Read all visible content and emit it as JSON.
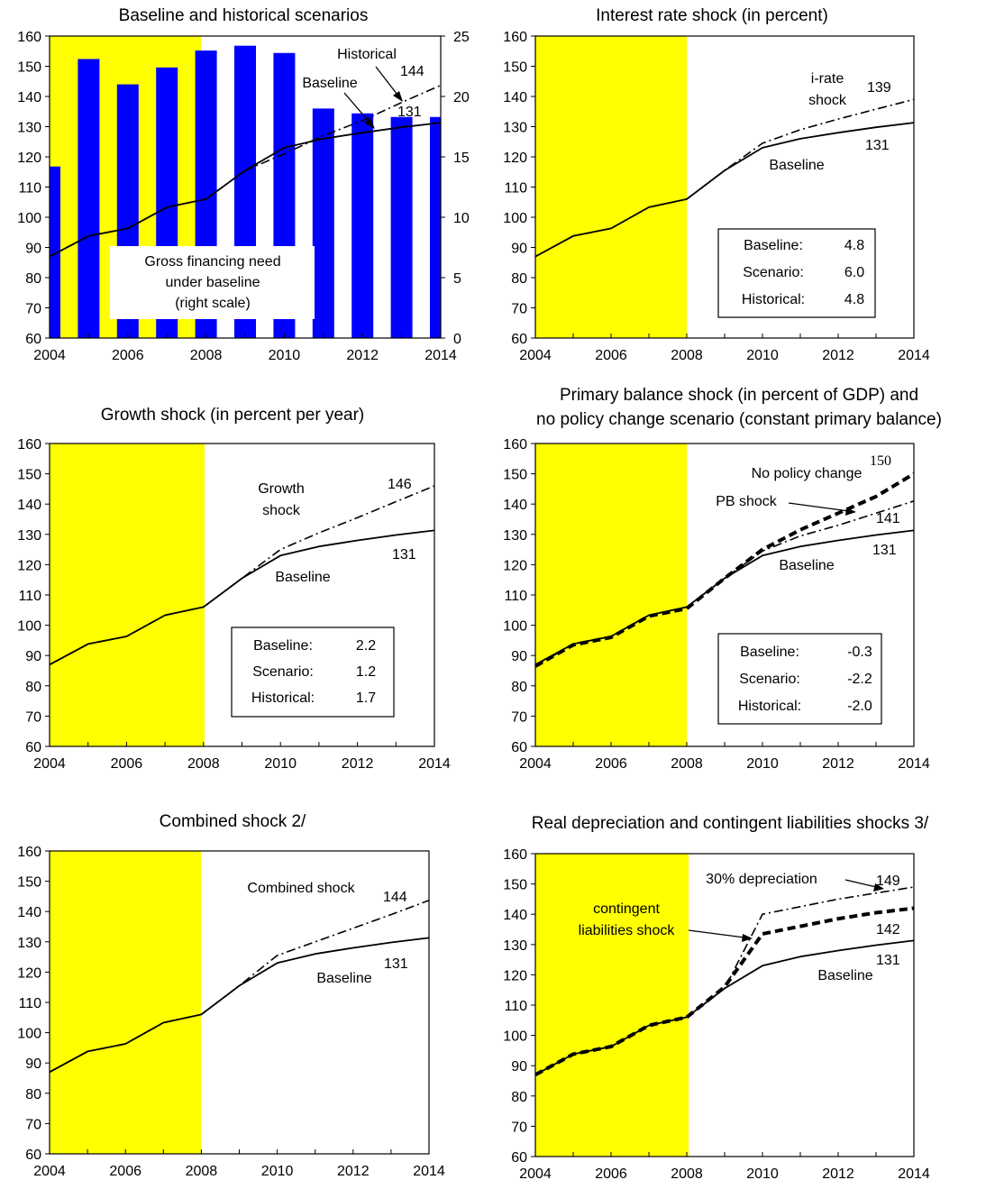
{
  "colors": {
    "shade": "#ffff00",
    "bars": "#0000ff",
    "line": "#000000"
  },
  "chart_data": [
    {
      "type": "line",
      "title": "Baseline and historical scenarios",
      "x": [
        2004,
        2005,
        2006,
        2007,
        2008,
        2009,
        2010,
        2011,
        2012,
        2013,
        2014
      ],
      "ylim": [
        60,
        160
      ],
      "y_ticks": [
        60,
        70,
        80,
        90,
        100,
        110,
        120,
        130,
        140,
        150,
        160
      ],
      "y2lim": [
        0,
        25
      ],
      "y2_ticks": [
        0,
        5,
        10,
        15,
        20,
        25
      ],
      "x_ticks": [
        2004,
        2006,
        2008,
        2010,
        2012,
        2014
      ],
      "shade_to": 2008,
      "bars": {
        "values": [
          14.2,
          23.1,
          21.0,
          22.4,
          23.8,
          24.2,
          23.6,
          19.0,
          18.6,
          18.3,
          18.3
        ],
        "label": [
          "Gross financing need",
          "under baseline",
          "(right scale)"
        ]
      },
      "series": [
        {
          "name": "Baseline",
          "style": "solid",
          "values": [
            87,
            93.8,
            96.3,
            103.3,
            106,
            115.5,
            123,
            126,
            128,
            129.8,
            131.3
          ]
        },
        {
          "name": "Historical",
          "style": "dashdot",
          "values": [
            87,
            93.8,
            96.3,
            103.3,
            106,
            115.5,
            121,
            127,
            132,
            138,
            143.7
          ]
        }
      ],
      "annotations": [
        "144",
        "131"
      ]
    },
    {
      "type": "line",
      "title": "Interest rate shock (in percent)",
      "x": [
        2004,
        2005,
        2006,
        2007,
        2008,
        2009,
        2010,
        2011,
        2012,
        2013,
        2014
      ],
      "ylim": [
        60,
        160
      ],
      "y_ticks": [
        60,
        70,
        80,
        90,
        100,
        110,
        120,
        130,
        140,
        150,
        160
      ],
      "x_ticks": [
        2004,
        2006,
        2008,
        2010,
        2012,
        2014
      ],
      "shade_to": 2008,
      "series": [
        {
          "name": "Baseline",
          "style": "solid",
          "values": [
            87,
            93.8,
            96.3,
            103.3,
            106,
            115.5,
            123,
            126,
            128,
            129.8,
            131.3
          ]
        },
        {
          "name": "i-rate shock",
          "style": "dashdot",
          "values": [
            87,
            93.8,
            96.3,
            103.3,
            106,
            115.5,
            124.5,
            129,
            132.5,
            135.8,
            139
          ]
        }
      ],
      "series_labels": [
        "i-rate",
        "shock"
      ],
      "annotations": [
        "139",
        "131"
      ],
      "legend_box": [
        [
          "Baseline:",
          "4.8"
        ],
        [
          "Scenario:",
          "6.0"
        ],
        [
          "Historical:",
          "4.8"
        ]
      ]
    },
    {
      "type": "line",
      "title": "Growth shock (in percent per year)",
      "x": [
        2004,
        2005,
        2006,
        2007,
        2008,
        2009,
        2010,
        2011,
        2012,
        2013,
        2014
      ],
      "ylim": [
        60,
        160
      ],
      "y_ticks": [
        60,
        70,
        80,
        90,
        100,
        110,
        120,
        130,
        140,
        150,
        160
      ],
      "x_ticks": [
        2004,
        2006,
        2008,
        2010,
        2012,
        2014
      ],
      "shade_to": 2008,
      "series": [
        {
          "name": "Baseline",
          "style": "solid",
          "values": [
            87,
            93.8,
            96.3,
            103.3,
            106,
            115.5,
            123,
            126,
            128,
            129.8,
            131.3
          ]
        },
        {
          "name": "Growth shock",
          "style": "dashdot",
          "values": [
            87,
            93.8,
            96.3,
            103.3,
            106,
            115.5,
            125,
            130.5,
            135.5,
            140.8,
            146
          ]
        }
      ],
      "series_labels": [
        "Growth",
        "shock"
      ],
      "annotations": [
        "146",
        "131"
      ],
      "legend_box": [
        [
          "Baseline:",
          "2.2"
        ],
        [
          "Scenario:",
          "1.2"
        ],
        [
          "Historical:",
          "1.7"
        ]
      ]
    },
    {
      "type": "line",
      "title": [
        "Primary balance shock (in percent of GDP) and",
        "no policy change scenario (constant primary balance)"
      ],
      "x": [
        2004,
        2005,
        2006,
        2007,
        2008,
        2009,
        2010,
        2011,
        2012,
        2013,
        2014
      ],
      "ylim": [
        60,
        160
      ],
      "y_ticks": [
        60,
        70,
        80,
        90,
        100,
        110,
        120,
        130,
        140,
        150,
        160
      ],
      "x_ticks": [
        2004,
        2006,
        2008,
        2010,
        2012,
        2014
      ],
      "shade_to": 2008,
      "series": [
        {
          "name": "Baseline",
          "style": "solid",
          "values": [
            87,
            93.8,
            96.3,
            103.3,
            106,
            115.5,
            123,
            126,
            128,
            129.8,
            131.3
          ]
        },
        {
          "name": "PB shock",
          "style": "dashdot",
          "values": [
            86.5,
            93.8,
            96.3,
            103.3,
            106,
            115.5,
            124.5,
            129.5,
            133,
            137,
            141
          ]
        },
        {
          "name": "No policy change",
          "style": "thickdash",
          "values": [
            86.5,
            93.5,
            96,
            103,
            105.5,
            115.5,
            125,
            131.5,
            137,
            142.5,
            150
          ]
        }
      ],
      "annotations": [
        "150",
        "141",
        "131"
      ],
      "legend_box": [
        [
          "Baseline:",
          "-0.3"
        ],
        [
          "Scenario:",
          "-2.2"
        ],
        [
          "Historical:",
          "-2.0"
        ]
      ]
    },
    {
      "type": "line",
      "title": "Combined shock  2/",
      "x": [
        2004,
        2005,
        2006,
        2007,
        2008,
        2009,
        2010,
        2011,
        2012,
        2013,
        2014
      ],
      "ylim": [
        60,
        160
      ],
      "y_ticks": [
        60,
        70,
        80,
        90,
        100,
        110,
        120,
        130,
        140,
        150,
        160
      ],
      "x_ticks": [
        2004,
        2006,
        2008,
        2010,
        2012,
        2014
      ],
      "shade_to": 2008,
      "series": [
        {
          "name": "Baseline",
          "style": "solid",
          "values": [
            87,
            93.8,
            96.3,
            103.3,
            106,
            115.5,
            123,
            126,
            128,
            129.8,
            131.3
          ]
        },
        {
          "name": "Combined shock",
          "style": "dashdot",
          "values": [
            87,
            93.8,
            96.3,
            103.3,
            106,
            115.5,
            125.5,
            130,
            134.5,
            139,
            143.7
          ]
        }
      ],
      "annotations": [
        "144",
        "131"
      ]
    },
    {
      "type": "line",
      "title": "Real depreciation and contingent liabilities shocks 3/",
      "x": [
        2004,
        2005,
        2006,
        2007,
        2008,
        2009,
        2010,
        2011,
        2012,
        2013,
        2014
      ],
      "ylim": [
        60,
        160
      ],
      "y_ticks": [
        60,
        70,
        80,
        90,
        100,
        110,
        120,
        130,
        140,
        150,
        160
      ],
      "x_ticks": [
        2004,
        2006,
        2008,
        2010,
        2012,
        2014
      ],
      "shade_to": 2008,
      "series": [
        {
          "name": "Baseline",
          "style": "solid",
          "values": [
            87,
            93.8,
            96.3,
            103.3,
            106,
            115.5,
            123,
            126,
            128,
            129.8,
            131.3
          ]
        },
        {
          "name": "30% depreciation",
          "style": "dashdot",
          "values": [
            87,
            93.8,
            96.3,
            103.3,
            106,
            115.5,
            140,
            142.5,
            145,
            147,
            149
          ]
        },
        {
          "name": "contingent liabilities shock",
          "style": "thickdash",
          "values": [
            87,
            93.8,
            96.3,
            103.3,
            106,
            116,
            133.5,
            136,
            138.5,
            140.5,
            142
          ]
        }
      ],
      "series_labels": [
        "contingent",
        "liabilities shock"
      ],
      "annotations": [
        "149",
        "142",
        "131"
      ]
    }
  ]
}
